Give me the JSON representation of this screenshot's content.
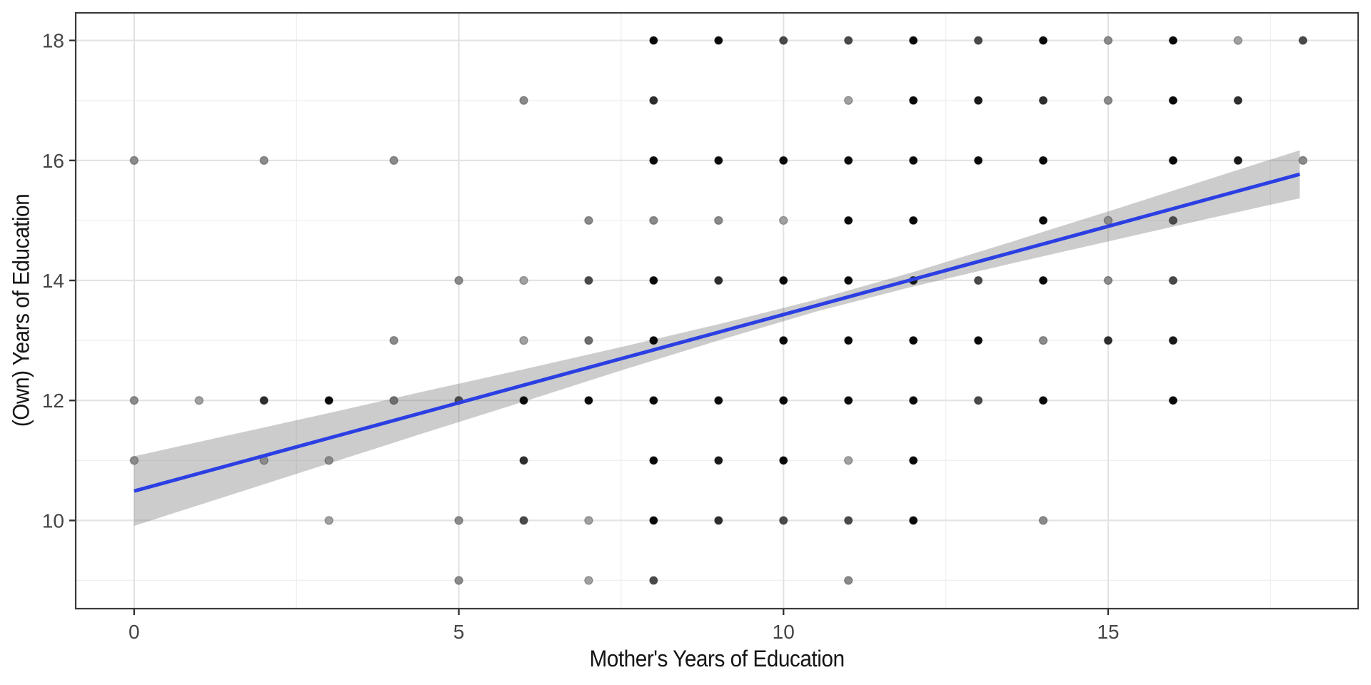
{
  "figure": {
    "background": "#ffffff"
  },
  "chart_data": {
    "type": "scatter",
    "title": "",
    "xlabel": "Mother's Years of Education",
    "ylabel": "(Own) Years of Education",
    "x_ticks": [
      0,
      5,
      10,
      15
    ],
    "y_ticks": [
      10,
      12,
      14,
      16,
      18
    ],
    "x_minor": [
      2.5,
      7.5,
      12.5,
      17.5
    ],
    "y_minor": [
      9,
      11,
      13,
      15,
      17
    ],
    "xlim": [
      -0.9,
      18.85
    ],
    "ylim": [
      8.53,
      18.46
    ],
    "grid": "on",
    "legend": "none",
    "point_radius": 5.6,
    "points": [
      [
        8,
        18,
        "#0a0a0a"
      ],
      [
        9,
        18,
        "#0a0a0a"
      ],
      [
        10,
        18,
        "#4a4a4a"
      ],
      [
        11,
        18,
        "#4a4a4a"
      ],
      [
        12,
        18,
        "#0a0a0a"
      ],
      [
        13,
        18,
        "#4a4a4a"
      ],
      [
        14,
        18,
        "#0a0a0a"
      ],
      [
        15,
        18,
        "#8a8a8a"
      ],
      [
        16,
        18,
        "#0a0a0a"
      ],
      [
        17,
        18,
        "#a0a0a0"
      ],
      [
        18,
        18,
        "#4a4a4a"
      ],
      [
        6,
        17,
        "#8a8a8a"
      ],
      [
        8,
        17,
        "#2e2e2e"
      ],
      [
        11,
        17,
        "#a0a0a0"
      ],
      [
        12,
        17,
        "#0a0a0a"
      ],
      [
        13,
        17,
        "#1a1a1a"
      ],
      [
        14,
        17,
        "#2e2e2e"
      ],
      [
        15,
        17,
        "#8a8a8a"
      ],
      [
        16,
        17,
        "#0a0a0a"
      ],
      [
        17,
        17,
        "#2e2e2e"
      ],
      [
        0,
        16,
        "#8a8a8a"
      ],
      [
        2,
        16,
        "#8a8a8a"
      ],
      [
        4,
        16,
        "#8a8a8a"
      ],
      [
        8,
        16,
        "#0a0a0a"
      ],
      [
        9,
        16,
        "#0a0a0a"
      ],
      [
        10,
        16,
        "#0a0a0a"
      ],
      [
        11,
        16,
        "#0a0a0a"
      ],
      [
        12,
        16,
        "#0a0a0a"
      ],
      [
        13,
        16,
        "#0a0a0a"
      ],
      [
        14,
        16,
        "#0a0a0a"
      ],
      [
        16,
        16,
        "#0a0a0a"
      ],
      [
        17,
        16,
        "#1a1a1a"
      ],
      [
        18,
        16,
        "#8a8a8a"
      ],
      [
        7,
        15,
        "#8a8a8a"
      ],
      [
        8,
        15,
        "#8a8a8a"
      ],
      [
        9,
        15,
        "#8a8a8a"
      ],
      [
        10,
        15,
        "#a0a0a0"
      ],
      [
        11,
        15,
        "#0a0a0a"
      ],
      [
        12,
        15,
        "#0a0a0a"
      ],
      [
        14,
        15,
        "#0a0a0a"
      ],
      [
        15,
        15,
        "#8a8a8a"
      ],
      [
        16,
        15,
        "#4a4a4a"
      ],
      [
        5,
        14,
        "#8a8a8a"
      ],
      [
        6,
        14,
        "#a0a0a0"
      ],
      [
        7,
        14,
        "#4a4a4a"
      ],
      [
        8,
        14,
        "#0a0a0a"
      ],
      [
        9,
        14,
        "#2e2e2e"
      ],
      [
        10,
        14,
        "#0a0a0a"
      ],
      [
        11,
        14,
        "#0a0a0a"
      ],
      [
        12,
        14,
        "#1a1a1a"
      ],
      [
        13,
        14,
        "#4a4a4a"
      ],
      [
        14,
        14,
        "#0a0a0a"
      ],
      [
        15,
        14,
        "#8a8a8a"
      ],
      [
        16,
        14,
        "#4a4a4a"
      ],
      [
        4,
        13,
        "#8a8a8a"
      ],
      [
        6,
        13,
        "#a0a0a0"
      ],
      [
        7,
        13,
        "#6e6e6e"
      ],
      [
        8,
        13,
        "#0a0a0a"
      ],
      [
        10,
        13,
        "#0a0a0a"
      ],
      [
        11,
        13,
        "#0a0a0a"
      ],
      [
        12,
        13,
        "#0a0a0a"
      ],
      [
        13,
        13,
        "#0a0a0a"
      ],
      [
        14,
        13,
        "#8a8a8a"
      ],
      [
        15,
        13,
        "#2e2e2e"
      ],
      [
        16,
        13,
        "#1a1a1a"
      ],
      [
        0,
        12,
        "#8a8a8a"
      ],
      [
        1,
        12,
        "#a0a0a0"
      ],
      [
        2,
        12,
        "#2e2e2e"
      ],
      [
        3,
        12,
        "#0a0a0a"
      ],
      [
        4,
        12,
        "#6e6e6e"
      ],
      [
        5,
        12,
        "#4a4a4a"
      ],
      [
        6,
        12,
        "#0a0a0a"
      ],
      [
        7,
        12,
        "#0a0a0a"
      ],
      [
        8,
        12,
        "#0a0a0a"
      ],
      [
        9,
        12,
        "#0a0a0a"
      ],
      [
        10,
        12,
        "#0a0a0a"
      ],
      [
        11,
        12,
        "#0a0a0a"
      ],
      [
        12,
        12,
        "#0a0a0a"
      ],
      [
        13,
        12,
        "#4a4a4a"
      ],
      [
        14,
        12,
        "#0a0a0a"
      ],
      [
        16,
        12,
        "#0a0a0a"
      ],
      [
        0,
        11,
        "#8a8a8a"
      ],
      [
        2,
        11,
        "#8a8a8a"
      ],
      [
        3,
        11,
        "#8a8a8a"
      ],
      [
        6,
        11,
        "#2e2e2e"
      ],
      [
        8,
        11,
        "#0a0a0a"
      ],
      [
        9,
        11,
        "#1a1a1a"
      ],
      [
        10,
        11,
        "#0a0a0a"
      ],
      [
        11,
        11,
        "#a0a0a0"
      ],
      [
        12,
        11,
        "#0a0a0a"
      ],
      [
        3,
        10,
        "#a0a0a0"
      ],
      [
        5,
        10,
        "#8a8a8a"
      ],
      [
        6,
        10,
        "#4a4a4a"
      ],
      [
        7,
        10,
        "#a0a0a0"
      ],
      [
        8,
        10,
        "#0a0a0a"
      ],
      [
        9,
        10,
        "#2e2e2e"
      ],
      [
        10,
        10,
        "#4a4a4a"
      ],
      [
        11,
        10,
        "#4a4a4a"
      ],
      [
        12,
        10,
        "#0a0a0a"
      ],
      [
        14,
        10,
        "#8a8a8a"
      ],
      [
        5,
        9,
        "#8a8a8a"
      ],
      [
        7,
        9,
        "#a0a0a0"
      ],
      [
        8,
        9,
        "#4a4a4a"
      ],
      [
        11,
        9,
        "#8a8a8a"
      ]
    ],
    "regression_line": {
      "x": [
        0,
        17.95
      ],
      "y": [
        10.49,
        15.77
      ],
      "color": "#2b3fe3",
      "width": 5
    },
    "ci_band": {
      "color": "rgba(110,110,110,0.35)",
      "x": [
        0,
        1.5,
        3,
        4.5,
        6,
        7.5,
        9,
        10.5,
        12,
        13.5,
        15,
        16.5,
        17.95
      ],
      "hi": [
        11.07,
        11.43,
        11.79,
        12.16,
        12.52,
        12.89,
        13.27,
        13.68,
        14.14,
        14.64,
        15.15,
        15.67,
        16.17
      ],
      "lo": [
        9.91,
        10.43,
        10.95,
        11.47,
        11.98,
        12.5,
        13.0,
        13.48,
        13.9,
        14.28,
        14.65,
        15.02,
        15.37
      ]
    },
    "colors": {
      "panel_background": "#ffffff",
      "major_grid": "#e3e3e3",
      "minor_grid": "#efefef",
      "panel_border": "#3a3a3a",
      "tick_mark": "#333333",
      "tick_label": "#454545",
      "axis_title": "#151515",
      "point_outline": "rgba(0,0,0,0.25)"
    }
  }
}
